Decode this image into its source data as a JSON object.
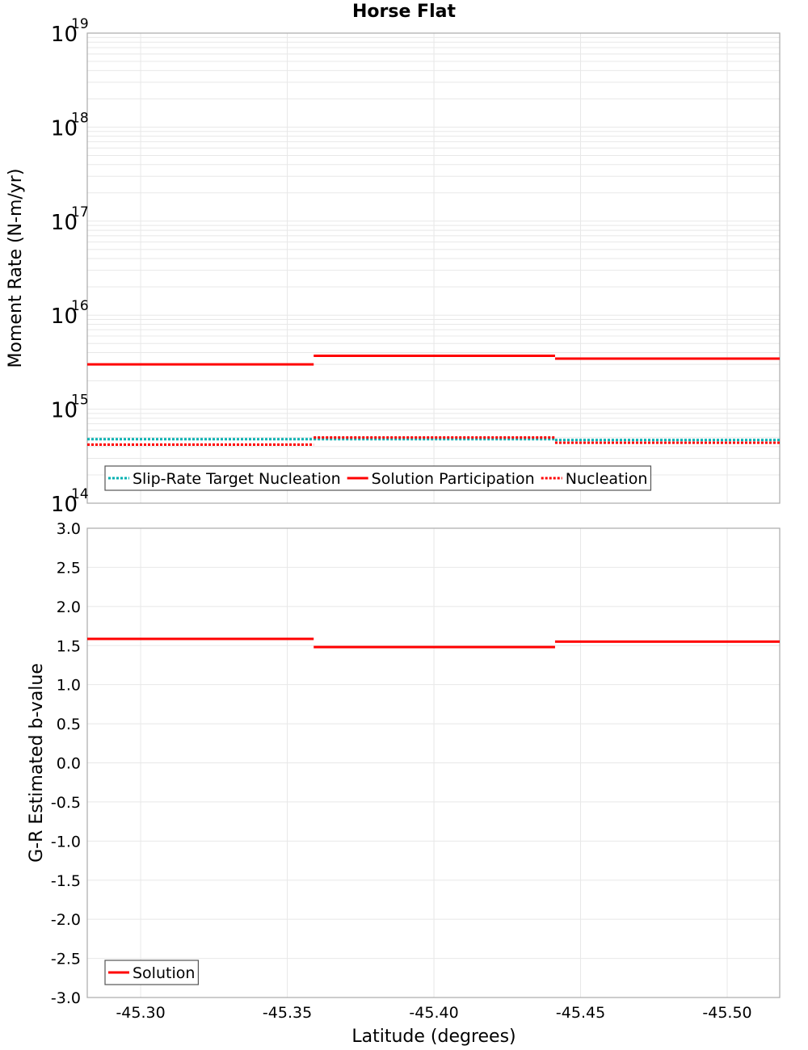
{
  "title": "Horse Flat",
  "colors": {
    "participation": "#ff0000",
    "nucleation": "#ff0000",
    "target": "#00b0b0",
    "grid": "#e8e8e8",
    "frame": "#aaaaaa"
  },
  "chart_data": [
    {
      "type": "line",
      "title": "Horse Flat",
      "xlabel": "Latitude (degrees)",
      "ylabel": "Moment Rate (N-m/yr)",
      "yscale": "log",
      "ylim": [
        100000000000000.0,
        1e+19
      ],
      "xlim": [
        -45.2818,
        -45.5179
      ],
      "x_inverted": true,
      "grid": true,
      "yticks": [
        "10^14",
        "10^15",
        "10^16",
        "10^17",
        "10^18",
        "10^19"
      ],
      "xticks": [
        "-45.30",
        "-45.35",
        "-45.40",
        "-45.45",
        "-45.50"
      ],
      "legend_position": "lower-left",
      "segment_bounds": [
        -45.2818,
        -45.359,
        -45.4413,
        -45.5179
      ],
      "series": [
        {
          "name": "Slip-Rate Target Nucleation",
          "style": "dotted",
          "color": "#00b0b0",
          "values": [
            480000000000000.0,
            480000000000000.0,
            470000000000000.0
          ]
        },
        {
          "name": "Solution Participation",
          "style": "solid",
          "color": "#ff0000",
          "values": [
            3000000000000000.0,
            3700000000000000.0,
            3450000000000000.0
          ]
        },
        {
          "name": "Nucleation",
          "style": "dotted",
          "color": "#ff0000",
          "values": [
            420000000000000.0,
            500000000000000.0,
            440000000000000.0
          ]
        }
      ]
    },
    {
      "type": "line",
      "xlabel": "Latitude (degrees)",
      "ylabel": "G-R Estimated b-value",
      "ylim": [
        -3.0,
        3.0
      ],
      "xlim": [
        -45.2818,
        -45.5179
      ],
      "x_inverted": true,
      "grid": true,
      "yticks": [
        "3.0",
        "2.5",
        "2.0",
        "1.5",
        "1.0",
        "0.5",
        "0.0",
        "-0.5",
        "-1.0",
        "-1.5",
        "-2.0",
        "-2.5",
        "-3.0"
      ],
      "xticks": [
        "-45.30",
        "-45.35",
        "-45.40",
        "-45.45",
        "-45.50"
      ],
      "legend_position": "lower-left",
      "segment_bounds": [
        -45.2818,
        -45.359,
        -45.4413,
        -45.5179
      ],
      "series": [
        {
          "name": "Solution",
          "style": "solid",
          "color": "#ff0000",
          "values": [
            1.585,
            1.48,
            1.55
          ]
        }
      ]
    }
  ]
}
